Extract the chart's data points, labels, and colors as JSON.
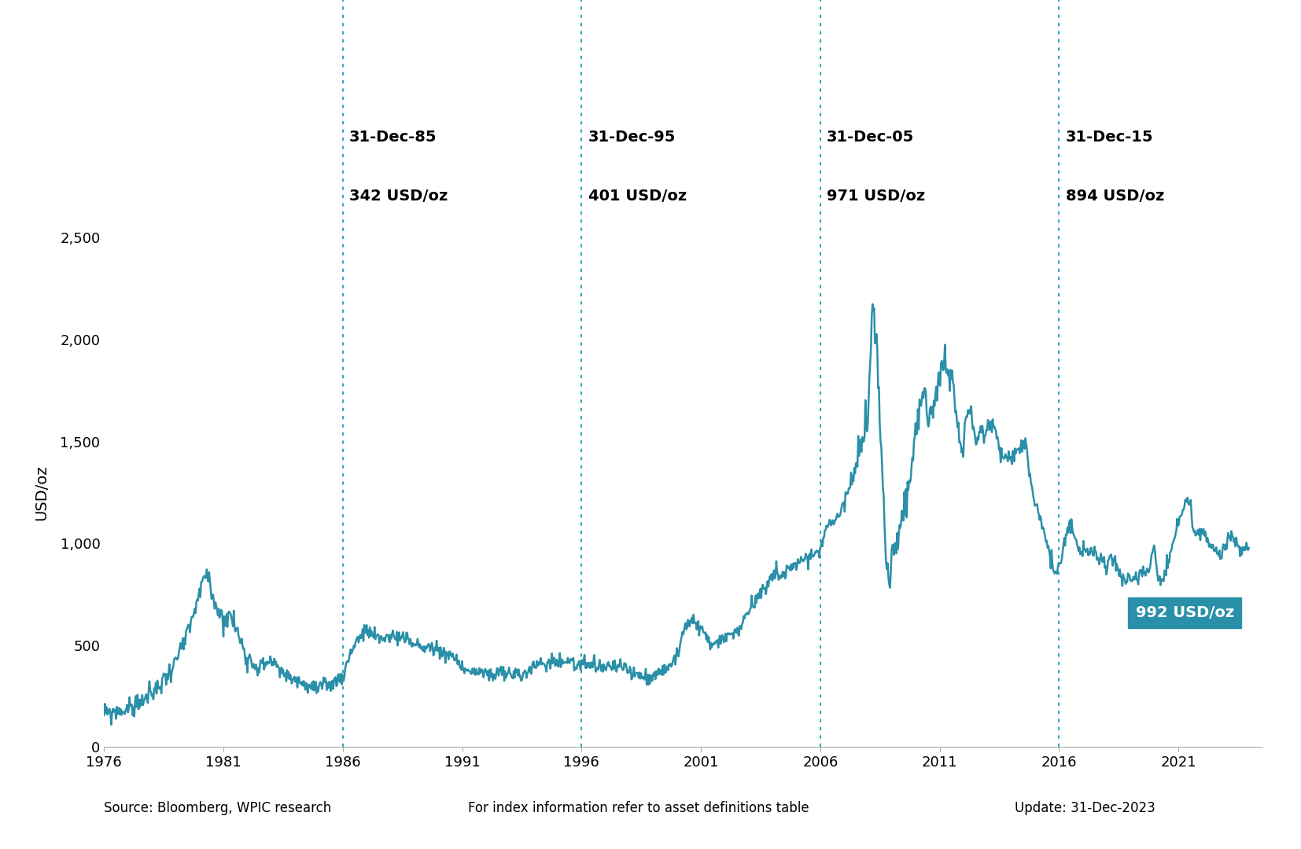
{
  "title": "",
  "ylabel": "USD/oz",
  "xlabel": "",
  "ylim": [
    0,
    2500
  ],
  "yticks": [
    0,
    500,
    1000,
    1500,
    2000,
    2500
  ],
  "xlim_start": 1976.0,
  "xlim_end": 2024.5,
  "xticks": [
    1976,
    1981,
    1986,
    1991,
    1996,
    2001,
    2006,
    2011,
    2016,
    2021
  ],
  "line_color": "#2a8fa8",
  "line_width": 1.8,
  "vline_color": "#2aaabf",
  "vlines": [
    1986.0,
    1996.0,
    2006.0,
    2016.0
  ],
  "annotations": [
    {
      "x": 1986.0,
      "label_date": "31-Dec-85",
      "label_value": "342 USD/oz"
    },
    {
      "x": 1996.0,
      "label_date": "31-Dec-95",
      "label_value": "401 USD/oz"
    },
    {
      "x": 2006.0,
      "label_date": "31-Dec-05",
      "label_value": "971 USD/oz"
    },
    {
      "x": 2016.0,
      "label_date": "31-Dec-15",
      "label_value": "894 USD/oz"
    }
  ],
  "box_label": "992 USD/oz",
  "box_color": "#2a8fa8",
  "box_text_color": "#ffffff",
  "source_text": "Source: Bloomberg, WPIC research",
  "middle_text": "For index information refer to asset definitions table",
  "update_text": "Update: 31-Dec-2023",
  "bg_color": "#ffffff",
  "annotation_date_fontsize": 14,
  "annotation_val_fontsize": 14,
  "axis_label_fontsize": 14,
  "tick_fontsize": 13,
  "footer_fontsize": 12
}
